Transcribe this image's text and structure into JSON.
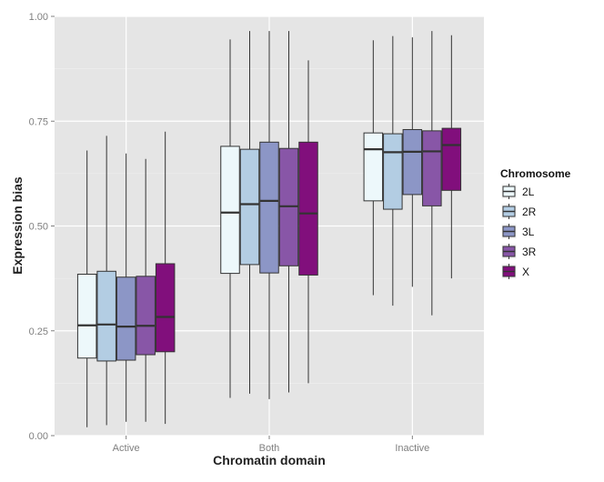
{
  "chart_data": {
    "type": "boxplot",
    "xlabel": "Chromatin domain",
    "ylabel": "Expression bias",
    "ylim": [
      0,
      1
    ],
    "yticks": [
      "0.00",
      "0.25",
      "0.50",
      "0.75",
      "1.00"
    ],
    "yticks_values": [
      0,
      0.25,
      0.5,
      0.75,
      1.0
    ],
    "categories": [
      "Active",
      "Both",
      "Inactive"
    ],
    "grid": true,
    "legend": {
      "title": "Chromosome",
      "position": "right",
      "entries": [
        "2L",
        "2R",
        "3L",
        "3R",
        "X"
      ]
    },
    "colors": {
      "2L": "#edf8fb",
      "2R": "#b3cde3",
      "3L": "#8c96c6",
      "3R": "#8856a7",
      "X": "#810f7c",
      "panel": "#e5e5e5",
      "gridline": "#ffffff"
    },
    "series": [
      {
        "name": "2L",
        "boxes": [
          {
            "whisker_low": 0.02,
            "q1": 0.185,
            "median": 0.263,
            "q3": 0.385,
            "whisker_high": 0.68
          },
          {
            "whisker_low": 0.09,
            "q1": 0.387,
            "median": 0.532,
            "q3": 0.69,
            "whisker_high": 0.945
          },
          {
            "whisker_low": 0.335,
            "q1": 0.56,
            "median": 0.683,
            "q3": 0.722,
            "whisker_high": 0.943
          }
        ]
      },
      {
        "name": "2R",
        "boxes": [
          {
            "whisker_low": 0.025,
            "q1": 0.178,
            "median": 0.265,
            "q3": 0.392,
            "whisker_high": 0.715
          },
          {
            "whisker_low": 0.1,
            "q1": 0.408,
            "median": 0.552,
            "q3": 0.683,
            "whisker_high": 0.965
          },
          {
            "whisker_low": 0.31,
            "q1": 0.54,
            "median": 0.676,
            "q3": 0.72,
            "whisker_high": 0.953
          }
        ]
      },
      {
        "name": "3L",
        "boxes": [
          {
            "whisker_low": 0.033,
            "q1": 0.18,
            "median": 0.26,
            "q3": 0.378,
            "whisker_high": 0.673
          },
          {
            "whisker_low": 0.087,
            "q1": 0.388,
            "median": 0.56,
            "q3": 0.7,
            "whisker_high": 0.965
          },
          {
            "whisker_low": 0.355,
            "q1": 0.575,
            "median": 0.677,
            "q3": 0.73,
            "whisker_high": 0.95
          }
        ]
      },
      {
        "name": "3R",
        "boxes": [
          {
            "whisker_low": 0.033,
            "q1": 0.193,
            "median": 0.262,
            "q3": 0.38,
            "whisker_high": 0.66
          },
          {
            "whisker_low": 0.103,
            "q1": 0.405,
            "median": 0.547,
            "q3": 0.685,
            "whisker_high": 0.965
          },
          {
            "whisker_low": 0.287,
            "q1": 0.548,
            "median": 0.678,
            "q3": 0.727,
            "whisker_high": 0.965
          }
        ]
      },
      {
        "name": "X",
        "boxes": [
          {
            "whisker_low": 0.028,
            "q1": 0.2,
            "median": 0.283,
            "q3": 0.41,
            "whisker_high": 0.725
          },
          {
            "whisker_low": 0.125,
            "q1": 0.383,
            "median": 0.53,
            "q3": 0.7,
            "whisker_high": 0.895
          },
          {
            "whisker_low": 0.375,
            "q1": 0.585,
            "median": 0.693,
            "q3": 0.733,
            "whisker_high": 0.955
          }
        ]
      }
    ]
  }
}
